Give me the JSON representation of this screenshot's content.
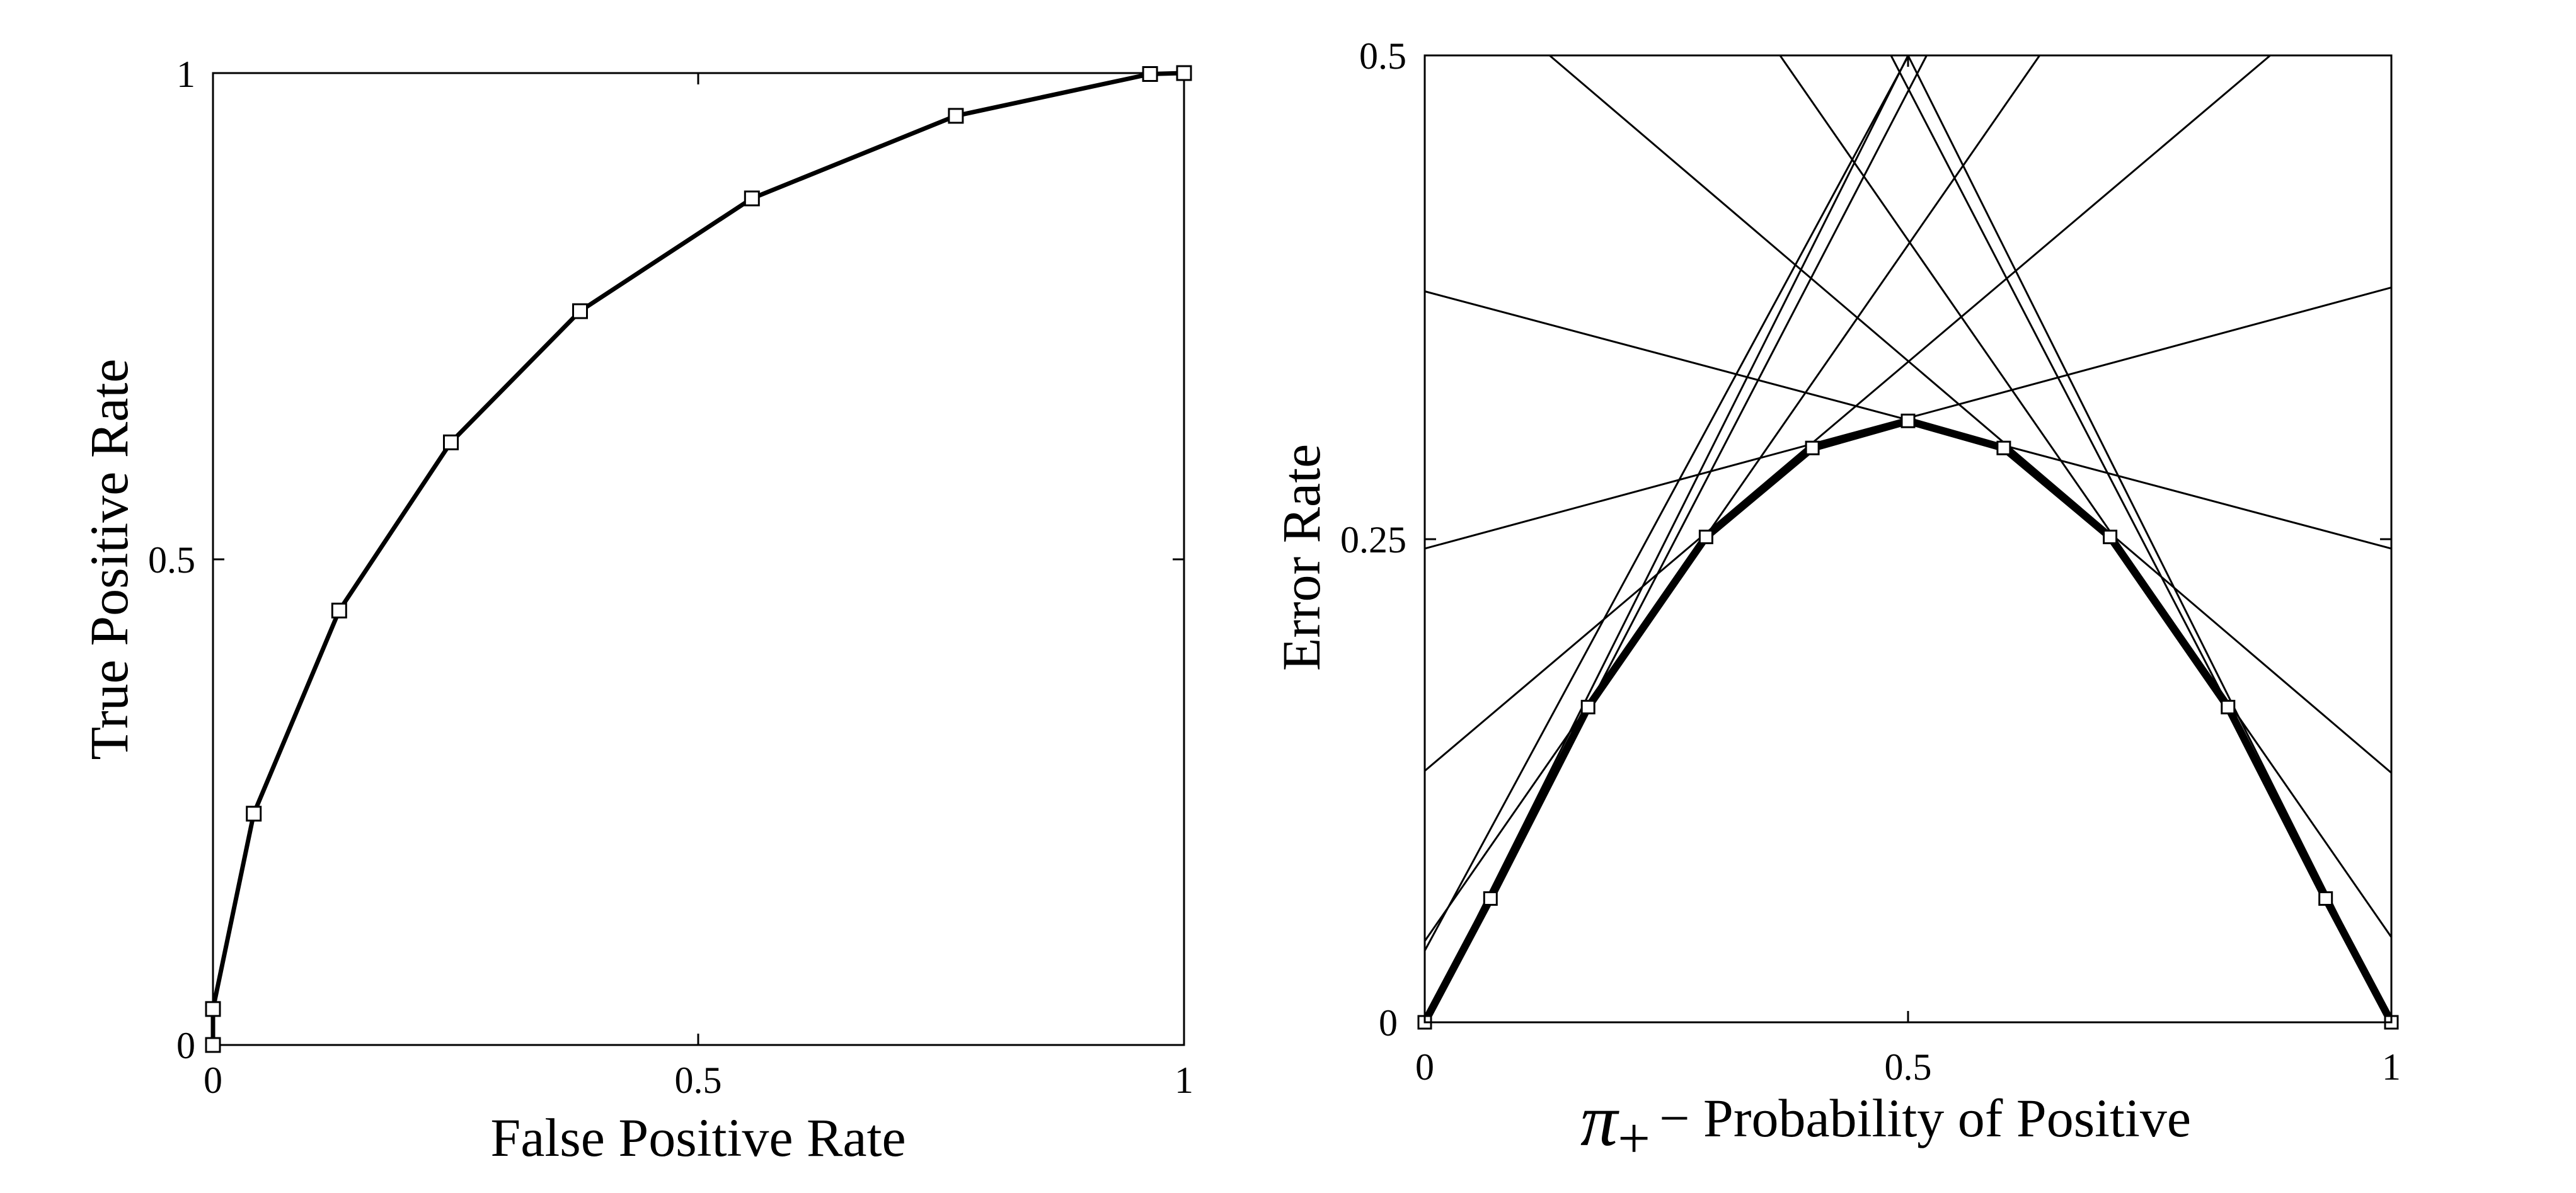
{
  "chart_data": [
    {
      "type": "line",
      "xlabel": "False Positive Rate",
      "ylabel": "True Positive Rate",
      "xlim": [
        0,
        1
      ],
      "ylim": [
        0,
        1
      ],
      "xticks": [
        "0",
        "0.5",
        "1"
      ],
      "yticks": [
        "0",
        "0.5",
        "1"
      ],
      "grid": false,
      "marker": "square",
      "color": "#000000",
      "points": [
        {
          "x": 0.0,
          "y": 0.0
        },
        {
          "x": 0.0,
          "y": 0.037
        },
        {
          "x": 0.042,
          "y": 0.238
        },
        {
          "x": 0.13,
          "y": 0.447
        },
        {
          "x": 0.245,
          "y": 0.62
        },
        {
          "x": 0.378,
          "y": 0.755
        },
        {
          "x": 0.555,
          "y": 0.871
        },
        {
          "x": 0.765,
          "y": 0.956
        },
        {
          "x": 0.965,
          "y": 0.999
        },
        {
          "x": 1.0,
          "y": 1.0
        }
      ]
    },
    {
      "type": "line",
      "xlabel_symbol": "π",
      "xlabel_subscript": "+",
      "xlabel": "− Probability of Positive",
      "ylabel": "Error Rate",
      "xlim": [
        0,
        1
      ],
      "ylim": [
        0,
        0.5
      ],
      "xticks": [
        "0",
        "0.5",
        "1"
      ],
      "yticks": [
        "0",
        "0.25",
        "0.5"
      ],
      "grid": false,
      "color": "#000000",
      "series": [
        {
          "points": [
            {
              "x": 0.0,
              "y": 0.0
            },
            {
              "x": 0.068,
              "y": 0.064
            },
            {
              "x": 0.169,
              "y": 0.163
            },
            {
              "x": 0.291,
              "y": 0.251
            },
            {
              "x": 0.401,
              "y": 0.297
            },
            {
              "x": 0.5,
              "y": 0.311
            },
            {
              "x": 0.599,
              "y": 0.297
            },
            {
              "x": 0.709,
              "y": 0.251
            },
            {
              "x": 0.831,
              "y": 0.163
            },
            {
              "x": 0.932,
              "y": 0.064
            },
            {
              "x": 1.0,
              "y": 0.0
            }
          ]
        }
      ],
      "cost_lines": [
        {
          "y_at_0": 0.0,
          "y_at_1": 1.0
        },
        {
          "y_at_0": 0.0,
          "y_at_1": 0.963
        },
        {
          "y_at_0": 0.037,
          "y_at_1": 0.962
        },
        {
          "y_at_0": 0.042,
          "y_at_1": 0.762
        },
        {
          "y_at_0": 0.13,
          "y_at_1": 0.553
        },
        {
          "y_at_0": 0.245,
          "y_at_1": 0.38
        },
        {
          "y_at_0": 0.378,
          "y_at_1": 0.245
        },
        {
          "y_at_0": 0.555,
          "y_at_1": 0.129
        },
        {
          "y_at_0": 0.765,
          "y_at_1": 0.044
        },
        {
          "y_at_0": 0.965,
          "y_at_1": 0.001
        },
        {
          "y_at_0": 1.0,
          "y_at_1": 0.0
        }
      ]
    }
  ]
}
